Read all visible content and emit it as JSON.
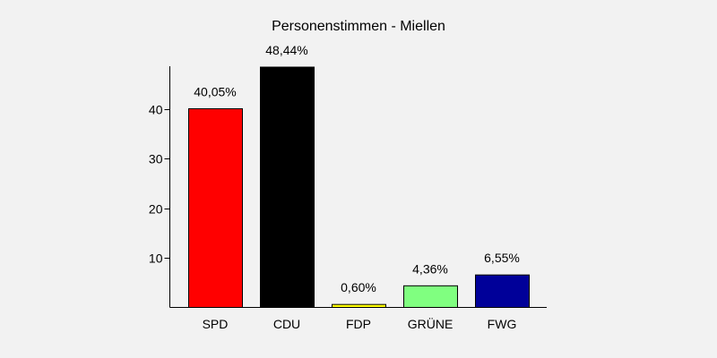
{
  "chart_data": {
    "type": "bar",
    "title": "Personenstimmen - Miellen",
    "categories": [
      "SPD",
      "CDU",
      "FDP",
      "GRÜNE",
      "FWG"
    ],
    "values": [
      40.05,
      48.44,
      0.6,
      4.36,
      6.55
    ],
    "value_labels": [
      "40,05%",
      "48,44%",
      "0,60%",
      "4,36%",
      "6,55%"
    ],
    "colors": [
      "#ff0000",
      "#000000",
      "#ffff00",
      "#80ff80",
      "#000099"
    ],
    "yticks": [
      10,
      20,
      30,
      40
    ],
    "ylim": [
      0,
      48.44
    ],
    "xlabel": "",
    "ylabel": "",
    "grid": false,
    "legend": "none"
  }
}
